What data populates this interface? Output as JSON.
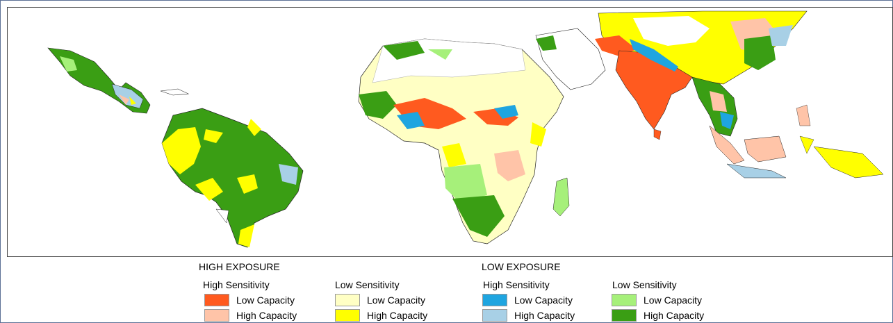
{
  "legend": {
    "groups": [
      {
        "title": "HIGH EXPOSURE",
        "columns": [
          {
            "subtitle": "High Sensitivity",
            "items": [
              {
                "label": "Low Capacity",
                "color": "#ff5a1f"
              },
              {
                "label": "High Capacity",
                "color": "#ffc4a8"
              }
            ]
          },
          {
            "subtitle": "Low Sensitivity",
            "items": [
              {
                "label": "Low Capacity",
                "color": "#ffffc4"
              },
              {
                "label": "High Capacity",
                "color": "#ffff00"
              }
            ]
          }
        ]
      },
      {
        "title": "LOW EXPOSURE",
        "columns": [
          {
            "subtitle": "High Sensitivity",
            "items": [
              {
                "label": "Low Capacity",
                "color": "#1fa5e0"
              },
              {
                "label": "High Capacity",
                "color": "#a8d0e6"
              }
            ]
          },
          {
            "subtitle": "Low Sensitivity",
            "items": [
              {
                "label": "Low Capacity",
                "color": "#a6f07a"
              },
              {
                "label": "High Capacity",
                "color": "#3a9e14"
              }
            ]
          }
        ]
      }
    ]
  }
}
